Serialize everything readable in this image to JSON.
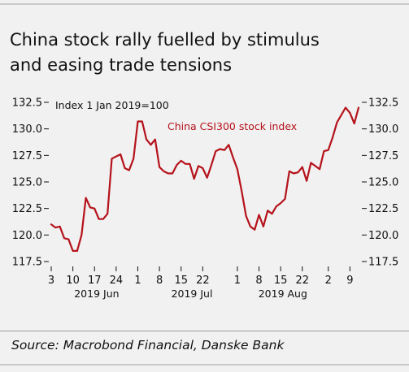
{
  "title_line1": "China stock rally fuelled by stimulus",
  "title_line2": "and easing trade tensions",
  "source": "Source: Macrobond Financial, Danske Bank",
  "chart_data": {
    "type": "line",
    "annotation_index": "Index 1 Jan 2019=100",
    "series": [
      {
        "name": "China CSI300 stock index",
        "color": "#b5121b",
        "values": [
          121.0,
          120.7,
          120.8,
          119.7,
          119.6,
          118.5,
          118.5,
          120.0,
          123.5,
          122.6,
          122.5,
          121.5,
          121.5,
          122.0,
          127.2,
          127.4,
          127.6,
          126.3,
          126.1,
          127.2,
          130.7,
          130.7,
          129.0,
          128.5,
          129.0,
          126.4,
          126.0,
          125.8,
          125.8,
          126.6,
          127.0,
          126.7,
          126.7,
          125.3,
          126.5,
          126.3,
          125.4,
          126.6,
          127.9,
          128.1,
          128.0,
          128.5,
          127.3,
          126.2,
          124.1,
          121.8,
          120.8,
          120.5,
          121.9,
          120.8,
          122.3,
          122.0,
          122.7,
          123.0,
          123.4,
          126.0,
          125.8,
          125.9,
          126.4,
          125.1,
          126.8,
          126.5,
          126.2,
          127.9,
          128.0,
          129.2,
          130.6,
          131.3,
          132.0,
          131.5,
          130.5,
          132.0
        ]
      }
    ],
    "y_ticks": [
      "132.5",
      "130.0",
      "127.5",
      "125.0",
      "122.5",
      "120.0",
      "117.5"
    ],
    "y_values": [
      132.5,
      130.0,
      127.5,
      125.0,
      122.5,
      120.0,
      117.5
    ],
    "ylim": [
      116.4,
      133.4
    ],
    "x_day_ticks": [
      "3",
      "10",
      "17",
      "24",
      "1",
      "8",
      "15",
      "22",
      "1",
      "8",
      "15",
      "22",
      "2",
      "9"
    ],
    "x_day_tick_index": [
      0,
      5,
      10,
      15,
      20,
      25,
      30,
      35,
      43,
      48,
      53,
      58,
      64,
      69
    ],
    "x_month_labels": [
      "2019 Jun",
      "2019 Jul",
      "2019 Aug"
    ],
    "x_month_label_index": [
      10.5,
      32.5,
      53.5
    ],
    "grid": false,
    "y_axis_sides": [
      "left",
      "right"
    ]
  }
}
